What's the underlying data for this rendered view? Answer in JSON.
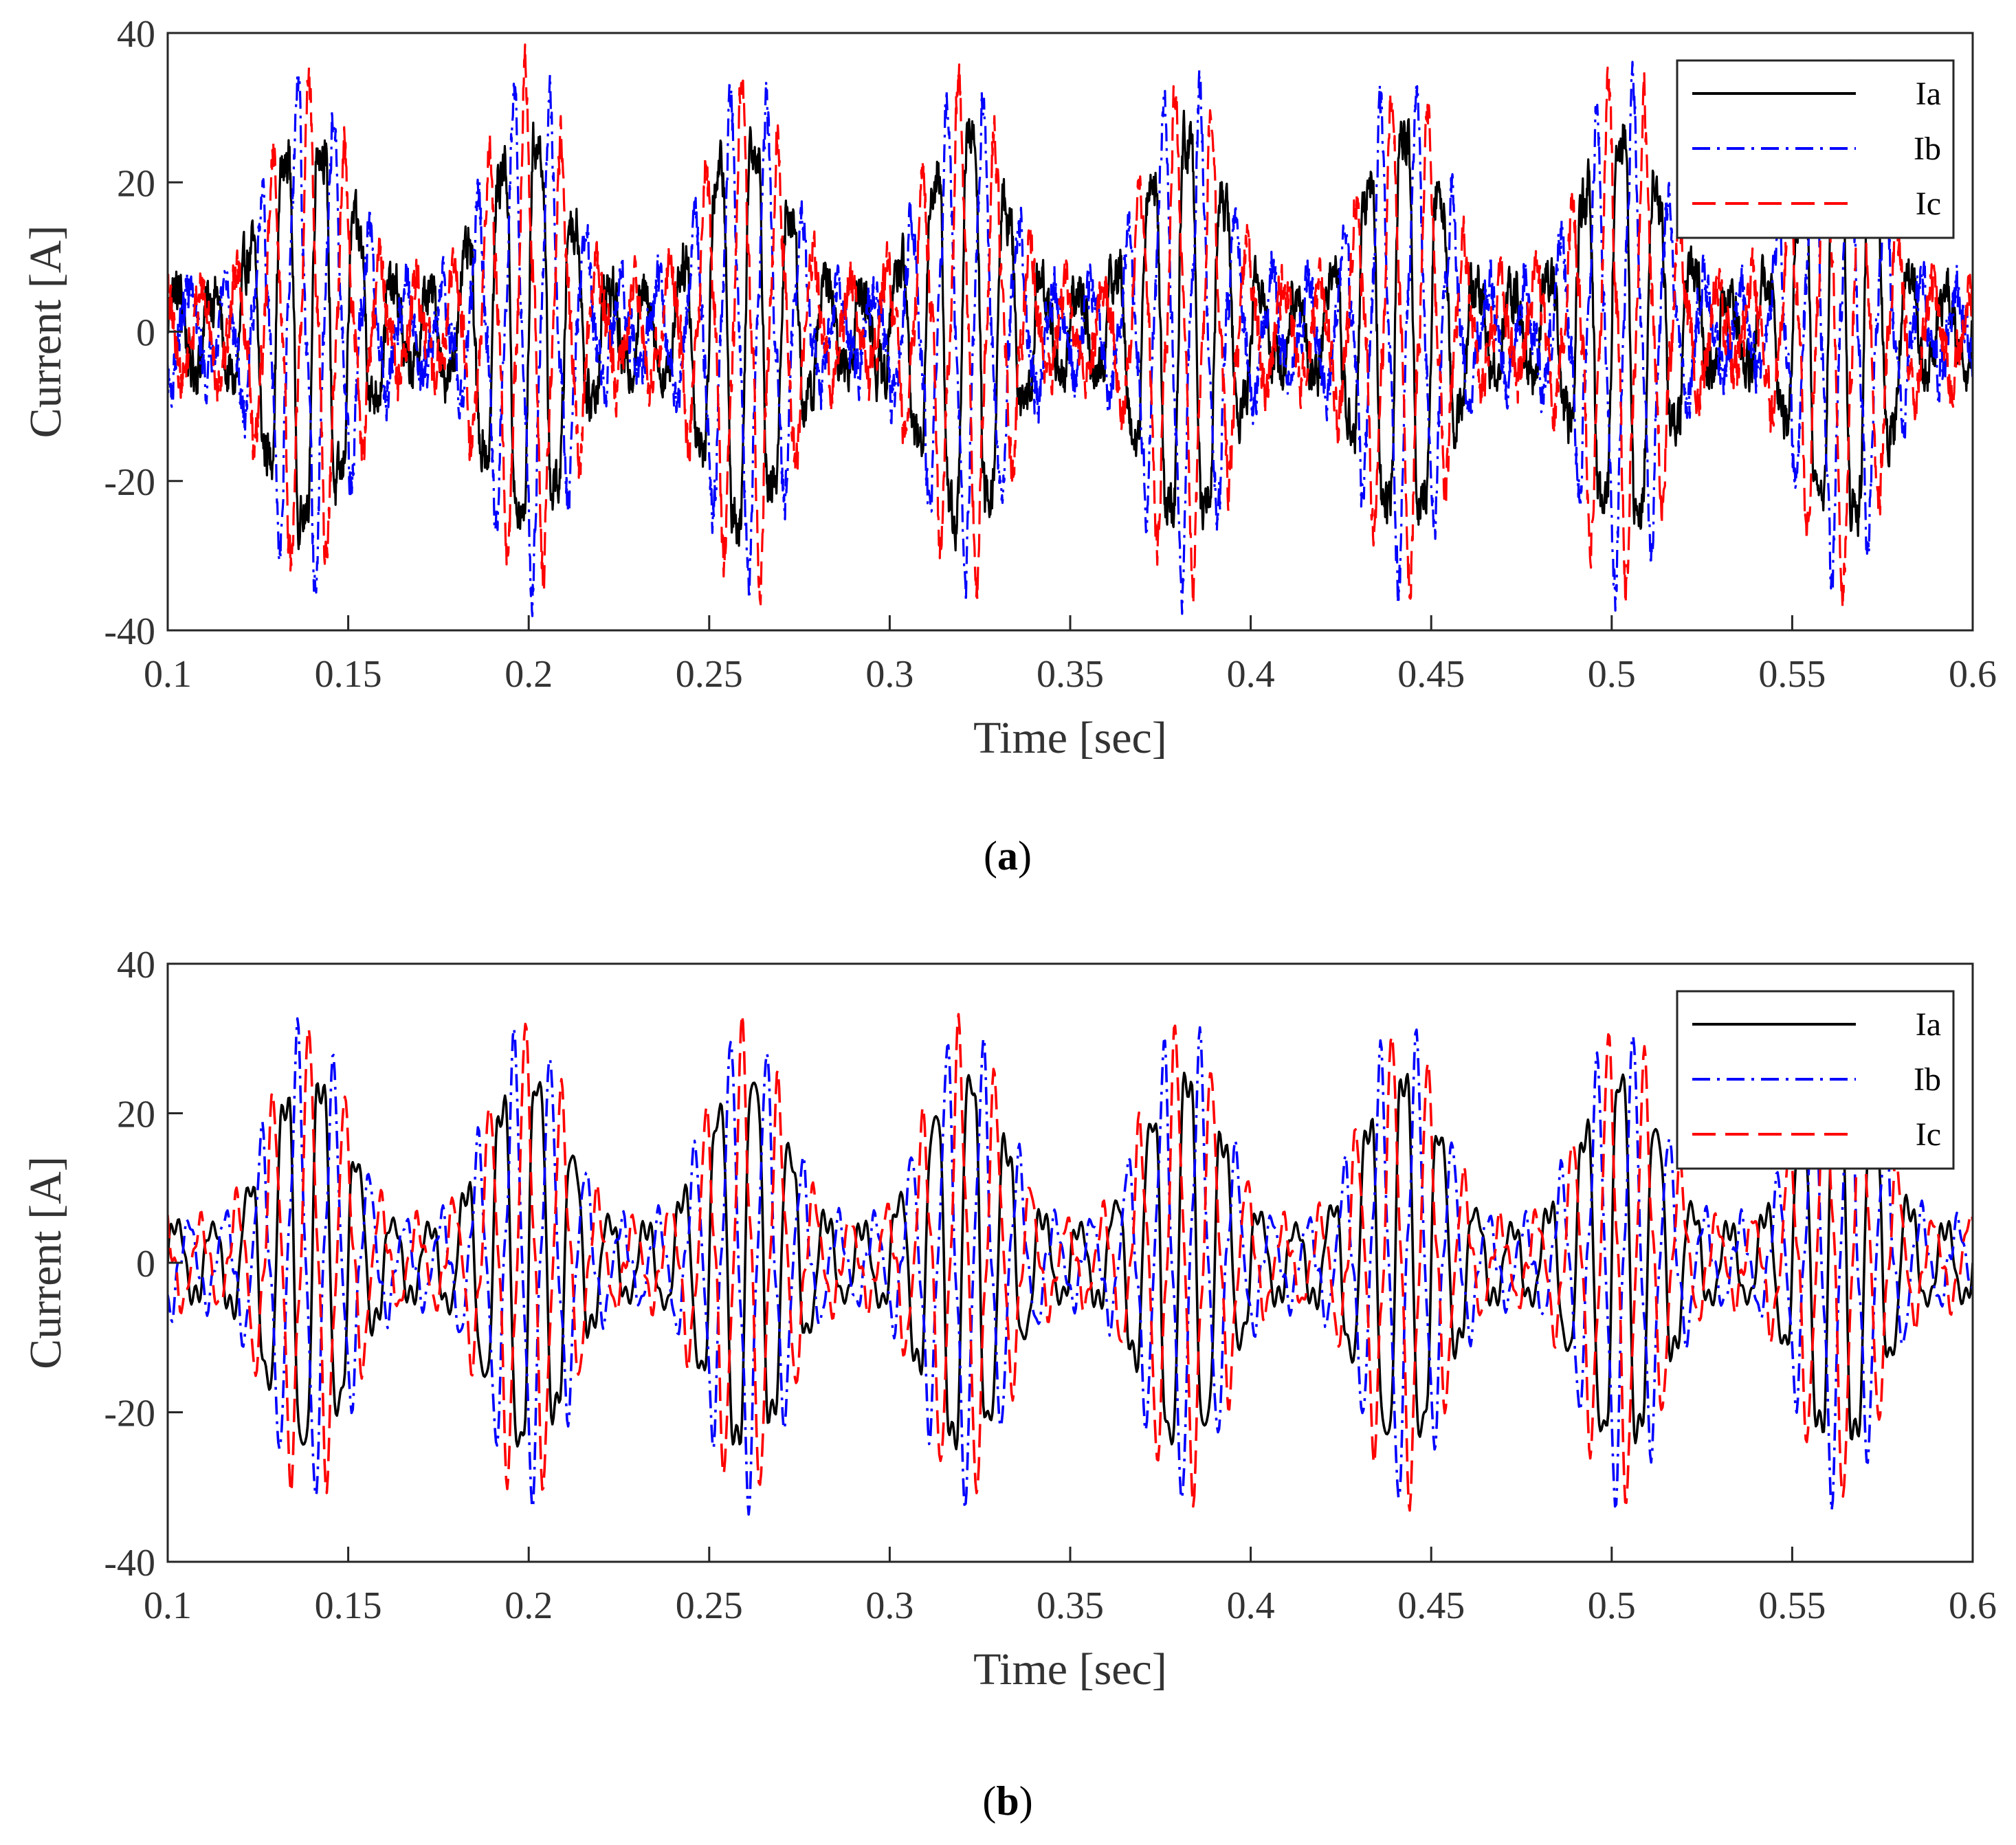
{
  "chart_data": [
    {
      "id": "a",
      "type": "line",
      "caption_letter": "a",
      "xlabel": "Time [sec]",
      "ylabel": "Current [A]",
      "xlim": [
        0.1,
        0.6
      ],
      "ylim": [
        -40,
        40
      ],
      "xticks": [
        "0.1",
        "0.15",
        "0.2",
        "0.25",
        "0.3",
        "0.35",
        "0.4",
        "0.45",
        "0.5",
        "0.55",
        "0.6"
      ],
      "yticks": [
        "-40",
        "-20",
        "0",
        "20",
        "40"
      ],
      "grid": false,
      "legend_position": "top-right",
      "noise": "high",
      "series": [
        {
          "name": "Ia",
          "color": "#000000",
          "style": "solid",
          "envelope_peak_times": [
            0.139,
            0.199,
            0.259,
            0.32,
            0.379,
            0.439,
            0.5,
            0.561
          ],
          "peak_amplitude": 30,
          "base_frequency_hz": 100,
          "fundamental_dc_frequency_hz": 16.5
        },
        {
          "name": "Ib",
          "color": "#0000ff",
          "style": "dashdot",
          "envelope_peak_times": [
            0.139,
            0.199,
            0.259,
            0.32,
            0.379,
            0.439,
            0.5,
            0.561
          ],
          "peak_amplitude": 30,
          "base_frequency_hz": 100,
          "fundamental_dc_frequency_hz": 16.5
        },
        {
          "name": "Ic",
          "color": "#ff0000",
          "style": "dashed",
          "envelope_peak_times": [
            0.139,
            0.199,
            0.259,
            0.32,
            0.379,
            0.439,
            0.5,
            0.561
          ],
          "peak_amplitude": 30,
          "base_frequency_hz": 100,
          "fundamental_dc_frequency_hz": 16.5
        }
      ]
    },
    {
      "id": "b",
      "type": "line",
      "caption_letter": "b",
      "xlabel": "Time [sec]",
      "ylabel": "Current [A]",
      "xlim": [
        0.1,
        0.6
      ],
      "ylim": [
        -40,
        40
      ],
      "xticks": [
        "0.1",
        "0.15",
        "0.2",
        "0.25",
        "0.3",
        "0.35",
        "0.4",
        "0.45",
        "0.5",
        "0.55",
        "0.6"
      ],
      "yticks": [
        "-40",
        "-20",
        "0",
        "20",
        "40"
      ],
      "grid": false,
      "legend_position": "top-right",
      "noise": "low",
      "series": [
        {
          "name": "Ia",
          "color": "#000000",
          "style": "solid",
          "envelope_peak_times": [
            0.139,
            0.199,
            0.259,
            0.32,
            0.379,
            0.439,
            0.5,
            0.561
          ],
          "peak_amplitude": 28,
          "base_frequency_hz": 100,
          "fundamental_dc_frequency_hz": 16.5
        },
        {
          "name": "Ib",
          "color": "#0000ff",
          "style": "dashdot",
          "envelope_peak_times": [
            0.139,
            0.199,
            0.259,
            0.32,
            0.379,
            0.439,
            0.5,
            0.561
          ],
          "peak_amplitude": 28,
          "base_frequency_hz": 100,
          "fundamental_dc_frequency_hz": 16.5
        },
        {
          "name": "Ic",
          "color": "#ff0000",
          "style": "dashed",
          "envelope_peak_times": [
            0.139,
            0.199,
            0.259,
            0.32,
            0.379,
            0.439,
            0.5,
            0.561
          ],
          "peak_amplitude": 28,
          "base_frequency_hz": 100,
          "fundamental_dc_frequency_hz": 16.5
        }
      ]
    }
  ]
}
